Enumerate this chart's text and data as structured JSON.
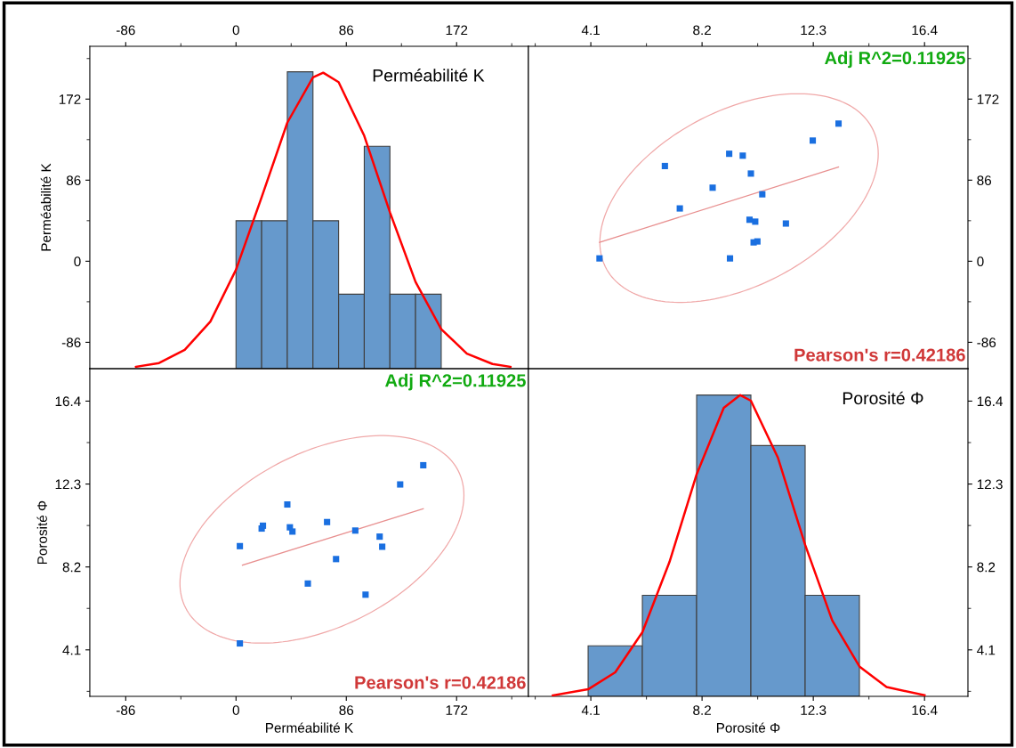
{
  "chart_data": [
    {
      "type": "histogram",
      "ylabel": "Perméabilité K",
      "annotations": [
        "Perméabilité K"
      ],
      "bins": [
        0,
        20,
        40,
        60,
        80,
        100,
        120,
        140,
        160
      ],
      "values": [
        157,
        157,
        315,
        157,
        79,
        236,
        79,
        79
      ],
      "base": [
        -114,
        -114,
        -114,
        -114,
        -114,
        -114,
        -114,
        -114
      ],
      "color": "#6699cc",
      "series": [
        {
          "type": "line",
          "color": "#ff0000",
          "x": [
            -78,
            -60,
            -40,
            -20,
            0,
            20,
            40,
            60,
            68,
            80,
            100,
            120,
            140,
            160,
            180,
            200,
            214
          ],
          "values": [
            -112,
            -108,
            -94,
            -64,
            -9,
            68,
            147,
            195,
            200,
            190,
            133,
            52,
            -22,
            -72,
            -98,
            -109,
            -112
          ]
        }
      ],
      "xlim": [
        -114,
        228
      ],
      "ylim": [
        -114,
        228
      ],
      "xticks": [
        -86,
        0,
        86,
        172
      ],
      "yticks": [
        -86,
        0,
        86,
        172
      ]
    },
    {
      "type": "scatter",
      "annotations": [
        "Adj R^2=0.11925",
        "Pearson's r=0.42186"
      ],
      "series": [
        {
          "type": "scatter",
          "color": "#1a6fe0",
          "marker": "square",
          "x": [
            4.42,
            6.83,
            7.38,
            8.59,
            9.2,
            9.7,
            10.0,
            10.42,
            9.95,
            10.16,
            10.1,
            10.24,
            11.29,
            9.23,
            12.28,
            13.23
          ],
          "values": [
            3,
            101,
            56,
            78,
            114,
            112,
            93,
            71,
            44,
            42,
            20,
            21,
            40,
            3,
            128,
            146
          ]
        },
        {
          "type": "line",
          "color": "#e89090",
          "x": [
            4.42,
            13.23
          ],
          "values": [
            20,
            100
          ]
        }
      ],
      "xlim": [
        1.8,
        18
      ],
      "ylim": [
        -114,
        228
      ],
      "xticks": [
        4.1,
        8.2,
        12.3,
        16.4
      ],
      "yticks": [
        -86,
        0,
        86,
        172
      ]
    },
    {
      "type": "scatter",
      "xlabel": "Perméabilité K",
      "ylabel": "Porosité Φ",
      "annotations": [
        "Adj R^2=0.11925",
        "Pearson's r=0.42186"
      ],
      "series": [
        {
          "type": "scatter",
          "color": "#1a6fe0",
          "marker": "square",
          "x": [
            3,
            101,
            56,
            78,
            114,
            112,
            93,
            71,
            44,
            42,
            20,
            21,
            40,
            3,
            128,
            146
          ],
          "values": [
            4.42,
            6.83,
            7.38,
            8.59,
            9.2,
            9.7,
            10.0,
            10.42,
            9.95,
            10.16,
            10.1,
            10.24,
            11.29,
            9.23,
            12.28,
            13.23
          ]
        },
        {
          "type": "line",
          "color": "#e89090",
          "x": [
            5,
            146
          ],
          "values": [
            8.29,
            11.08
          ]
        }
      ],
      "xlim": [
        -114,
        228
      ],
      "ylim": [
        1.8,
        18
      ],
      "xticks": [
        -86,
        0,
        86,
        172
      ],
      "yticks": [
        4.1,
        8.2,
        12.3,
        16.4
      ]
    },
    {
      "type": "histogram",
      "xlabel": "Porosité Φ",
      "annotations": [
        "Porosité Φ"
      ],
      "bins": [
        4,
        6,
        8,
        10,
        12,
        14
      ],
      "values": [
        2.5,
        5.0,
        14.9,
        12.4,
        5.0
      ],
      "base": [
        1.8,
        1.8,
        1.8,
        1.8,
        1.8
      ],
      "color": "#6699cc",
      "series": [
        {
          "type": "line",
          "color": "#ff0000",
          "x": [
            2.7,
            4,
            5,
            6,
            7,
            8,
            9,
            9.6,
            10,
            11,
            12,
            13,
            14,
            15,
            16.4
          ],
          "values": [
            1.85,
            2.15,
            2.99,
            4.97,
            8.45,
            12.78,
            16.07,
            16.7,
            16.42,
            13.59,
            9.29,
            5.55,
            3.28,
            2.26,
            1.86
          ]
        }
      ],
      "xlim": [
        1.8,
        18
      ],
      "ylim": [
        1.8,
        18
      ],
      "xticks": [
        4.1,
        8.2,
        12.3,
        16.4
      ],
      "yticks": [
        4.1,
        8.2,
        12.3,
        16.4
      ]
    }
  ]
}
